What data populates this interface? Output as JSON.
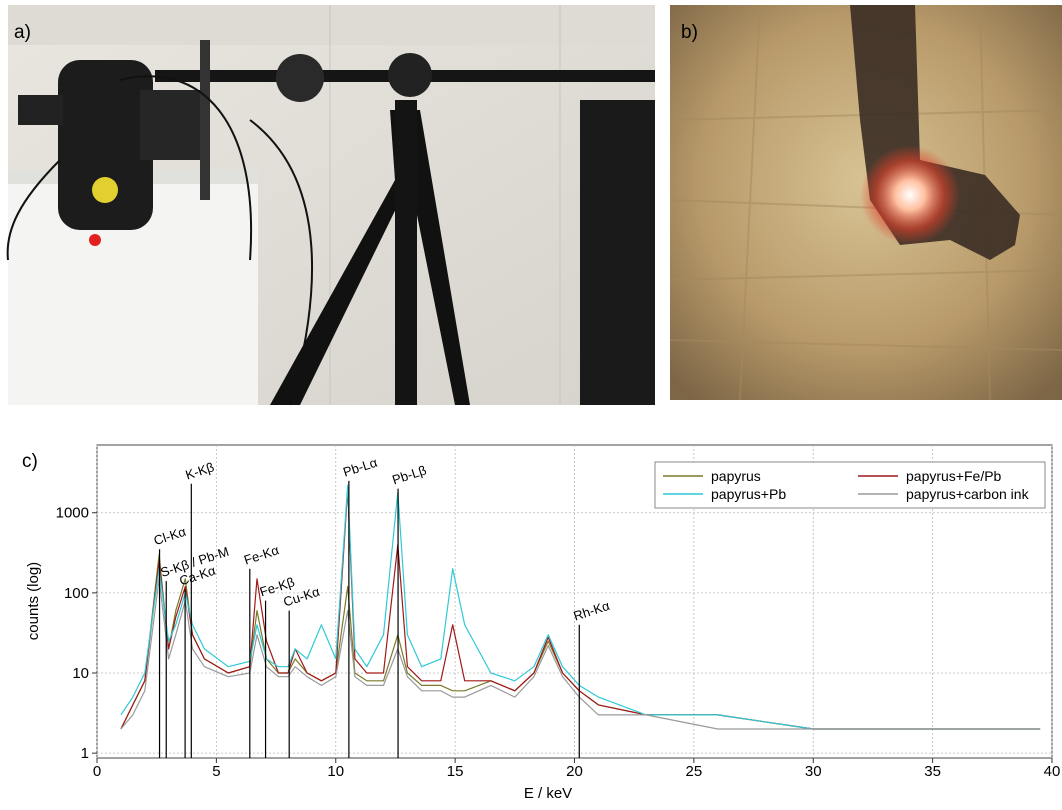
{
  "panel_labels": [
    "a)",
    "b)",
    "c)"
  ],
  "chart_data": {
    "type": "line",
    "x_label": "E / keV",
    "y_label": "counts (log)",
    "log_y": true,
    "grid": true,
    "legend": "upper-right",
    "xlim": [
      0,
      40
    ],
    "xticks": [
      0,
      5,
      10,
      15,
      20,
      25,
      30,
      35,
      40
    ],
    "ylim": [
      0.87,
      7000
    ],
    "yticks": [
      1,
      10,
      100,
      1000
    ],
    "x": [
      1,
      1.5,
      2,
      2.6,
      3,
      3.3,
      3.7,
      4.0,
      4.5,
      5.5,
      6.4,
      6.7,
      7.1,
      7.6,
      8.0,
      8.3,
      8.8,
      9.4,
      10.0,
      10.5,
      10.8,
      11.3,
      12.0,
      12.6,
      13.0,
      13.6,
      14.4,
      14.9,
      15.4,
      16.5,
      17.5,
      18.3,
      18.9,
      19.5,
      20.2,
      21,
      23,
      26,
      30,
      35,
      39.5
    ],
    "series": [
      {
        "name": "papyrus",
        "color": "#7a7a2a",
        "values": [
          2,
          4,
          8,
          300,
          20,
          60,
          150,
          30,
          15,
          10,
          12,
          60,
          15,
          10,
          10,
          15,
          10,
          8,
          10,
          120,
          10,
          8,
          8,
          30,
          10,
          7,
          7,
          6,
          6,
          8,
          6,
          10,
          25,
          10,
          6,
          4,
          3,
          3,
          2,
          2,
          2
        ]
      },
      {
        "name": "papyrus+Fe/Pb",
        "color": "#a01818",
        "values": [
          2,
          4,
          8,
          250,
          20,
          50,
          120,
          30,
          15,
          10,
          12,
          150,
          25,
          10,
          10,
          20,
          10,
          8,
          10,
          2000,
          15,
          10,
          10,
          400,
          12,
          8,
          8,
          40,
          8,
          8,
          6,
          10,
          28,
          10,
          6,
          4,
          3,
          3,
          2,
          2,
          2
        ]
      },
      {
        "name": "papyrus+Pb",
        "color": "#2ec9d6",
        "values": [
          3,
          5,
          10,
          200,
          25,
          40,
          100,
          40,
          20,
          12,
          14,
          40,
          15,
          12,
          12,
          20,
          15,
          40,
          15,
          2200,
          20,
          12,
          30,
          1800,
          30,
          12,
          15,
          200,
          40,
          10,
          8,
          12,
          30,
          12,
          7,
          5,
          3,
          3,
          2,
          2,
          2
        ]
      },
      {
        "name": "papyrus+carbon ink",
        "color": "#9a9a9a",
        "values": [
          2,
          3,
          6,
          150,
          15,
          30,
          80,
          20,
          12,
          9,
          10,
          30,
          12,
          9,
          9,
          12,
          9,
          7,
          9,
          60,
          9,
          7,
          7,
          20,
          9,
          6,
          6,
          5,
          5,
          7,
          5,
          9,
          22,
          9,
          5,
          3,
          3,
          2,
          2,
          2,
          2
        ]
      }
    ],
    "annotations": [
      {
        "text": "Cl-Kα",
        "x": 2.62,
        "y": 350
      },
      {
        "text": "S-Kβ / Pb-M",
        "x": 2.9,
        "y": 140
      },
      {
        "text": "Ca-Kα",
        "x": 3.69,
        "y": 110
      },
      {
        "text": "K-Kβ",
        "x": 3.95,
        "y": 2300
      },
      {
        "text": "Fe-Kα",
        "x": 6.4,
        "y": 200
      },
      {
        "text": "Fe-Kβ",
        "x": 7.06,
        "y": 80
      },
      {
        "text": "Cu-Kα",
        "x": 8.05,
        "y": 60
      },
      {
        "text": "Pb-Lα",
        "x": 10.55,
        "y": 2500
      },
      {
        "text": "Pb-Lβ",
        "x": 12.61,
        "y": 2000
      },
      {
        "text": "Rh-Kα",
        "x": 20.2,
        "y": 40
      }
    ]
  }
}
